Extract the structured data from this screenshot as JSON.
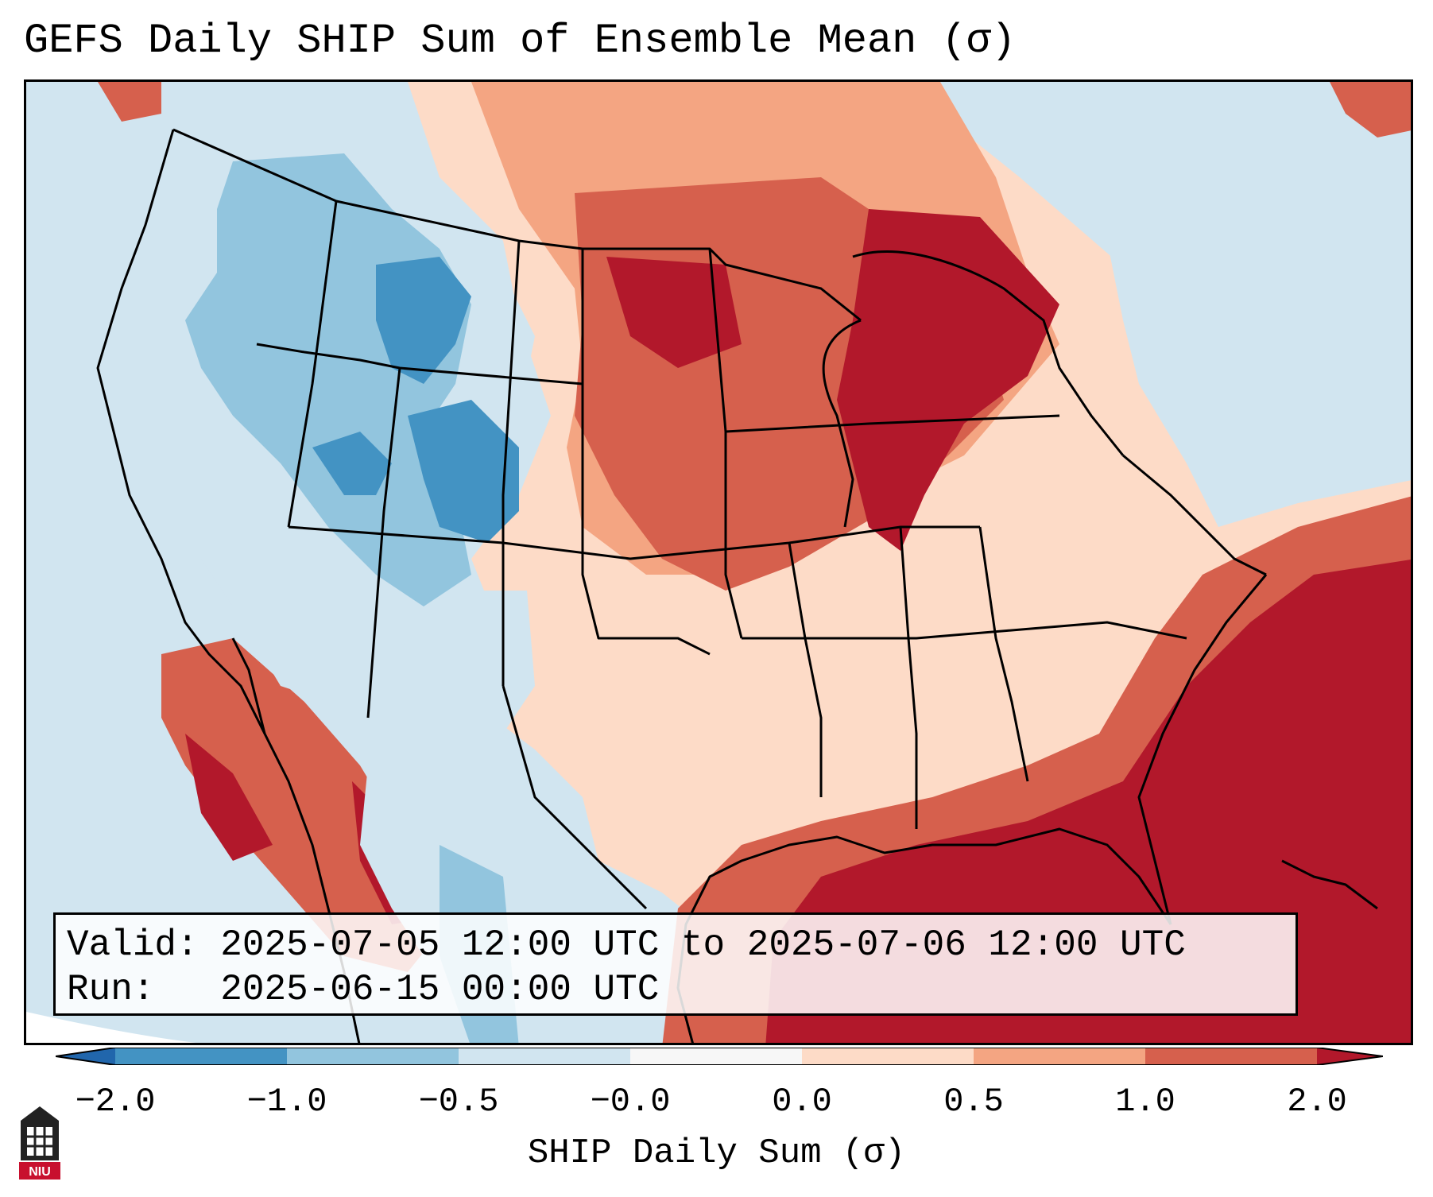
{
  "header": {
    "title": "GEFS Daily SHIP Sum of Ensemble Mean (σ)"
  },
  "info": {
    "valid_label": "Valid:",
    "valid_value": "2025-07-05 12:00 UTC to 2025-07-06 12:00 UTC",
    "run_label": "Run:",
    "run_value": "2025-06-15 00:00 UTC"
  },
  "colorbar": {
    "label": "SHIP Daily Sum (σ)",
    "ticks": [
      "−2.0",
      "−1.0",
      "−0.5",
      "−0.0",
      "0.0",
      "0.5",
      "1.0",
      "2.0"
    ],
    "colors": [
      "#2166ac",
      "#4393c3",
      "#92c5de",
      "#d1e5f0",
      "#f7f7f7",
      "#fddbc7",
      "#f4a582",
      "#d6604d",
      "#b2182b"
    ]
  },
  "logo": {
    "text": "NIU",
    "color": "#c8102e"
  }
}
